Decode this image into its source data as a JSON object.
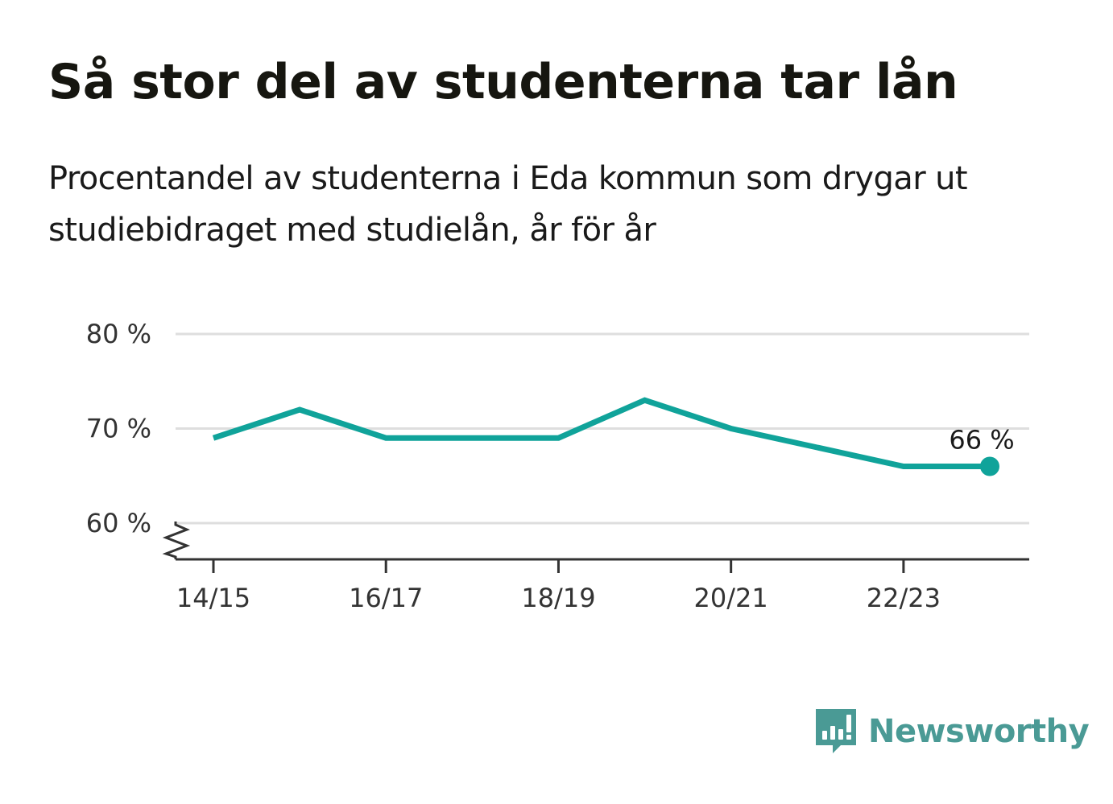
{
  "header": {
    "title": "Så stor del av studenterna tar lån",
    "subtitle": "Procentandel av studenterna i Eda kommun som drygar ut studiebidraget med studielån, år för år"
  },
  "chart_data": {
    "type": "line",
    "x": [
      "14/15",
      "15/16",
      "16/17",
      "17/18",
      "18/19",
      "19/20",
      "20/21",
      "21/22",
      "22/23",
      "23/24"
    ],
    "series": [
      {
        "values": [
          69,
          72,
          69,
          69,
          69,
          73,
          70,
          68,
          66,
          66
        ],
        "color": "#10a39a"
      }
    ],
    "x_tick_labels": [
      "14/15",
      "16/17",
      "18/19",
      "20/21",
      "22/23"
    ],
    "y_ticks": [
      60,
      70,
      80
    ],
    "y_tick_labels": [
      "60 %",
      "70 %",
      "80 %"
    ],
    "ylim": [
      56,
      80
    ],
    "axis_break": true,
    "grid": true,
    "end_label": "66 %"
  },
  "brand": {
    "name": "Newsworthy",
    "icon": "newsworthy-logo-icon",
    "color": "#4a9a95"
  }
}
